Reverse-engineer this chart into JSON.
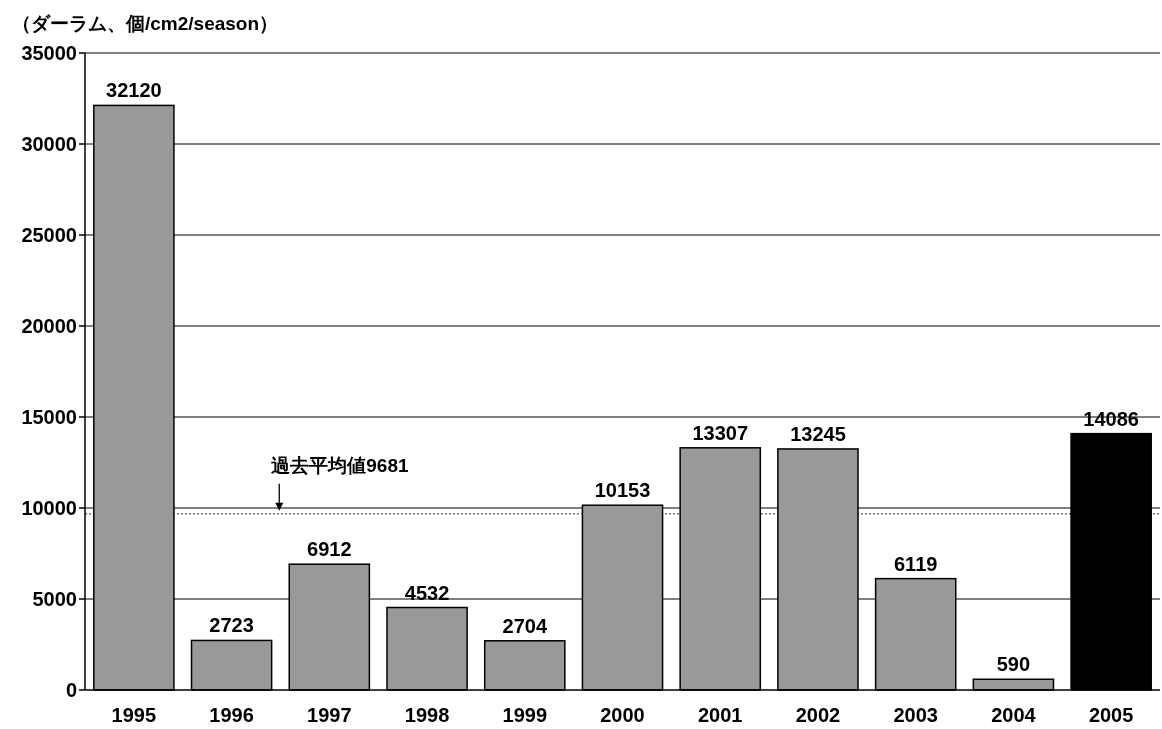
{
  "chart_data": {
    "type": "bar",
    "ylabel": "（ダーラム、個/cm2/season）",
    "categories": [
      "1995",
      "1996",
      "1997",
      "1998",
      "1999",
      "2000",
      "2001",
      "2002",
      "2003",
      "2004",
      "2005"
    ],
    "values": [
      32120,
      2723,
      6912,
      4532,
      2704,
      10153,
      13307,
      13245,
      6119,
      590,
      14086
    ],
    "colors": [
      "#999999",
      "#999999",
      "#999999",
      "#999999",
      "#999999",
      "#999999",
      "#999999",
      "#999999",
      "#999999",
      "#999999",
      "#000000"
    ],
    "ylim": [
      0,
      35000
    ],
    "yticks": [
      0,
      5000,
      10000,
      15000,
      20000,
      25000,
      30000,
      35000
    ],
    "grid": "y",
    "data_labels": true,
    "ref_lines": [
      {
        "axis": "y",
        "value": 9681,
        "label": "過去平均値9681",
        "line_style": "dotted",
        "color": "#555555"
      }
    ]
  }
}
